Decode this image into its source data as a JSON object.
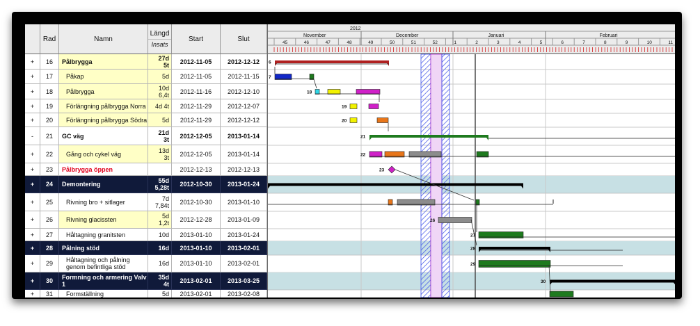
{
  "header": {
    "col_expand": "",
    "col_rad": "Rad",
    "col_name": "Namn",
    "col_duration": "Längd",
    "col_duration_sub": "Insats",
    "col_start": "Start",
    "col_end": "Slut"
  },
  "timescale": {
    "year": "2012",
    "months": [
      "November",
      "December",
      "Januari",
      "Februari"
    ],
    "weeks": [
      "45",
      "46",
      "47",
      "48",
      "49",
      "50",
      "51",
      "52",
      "1",
      "2",
      "3",
      "4",
      "5",
      "6",
      "7",
      "8",
      "9",
      "10",
      "11"
    ]
  },
  "rows": [
    {
      "exp": "+",
      "rad": "16",
      "name": "Pålbrygga",
      "dur": "27d",
      "dur2": "5t",
      "start": "2012-11-05",
      "end": "2012-12-12",
      "style": "yellow sum"
    },
    {
      "exp": "+",
      "rad": "17",
      "name": "Påkap",
      "dur": "5d",
      "dur2": "",
      "start": "2012-11-05",
      "end": "2012-11-15",
      "style": "yellow sub"
    },
    {
      "exp": "+",
      "rad": "18",
      "name": "Pålbrygga",
      "dur": "10d",
      "dur2": "6,4t",
      "start": "2012-11-16",
      "end": "2012-12-10",
      "style": "yellow sub"
    },
    {
      "exp": "+",
      "rad": "19",
      "name": "Förlängning pålbrygga Norra",
      "dur": "4d 4t",
      "dur2": "",
      "start": "2012-11-29",
      "end": "2012-12-07",
      "style": "yellow sub"
    },
    {
      "exp": "+",
      "rad": "20",
      "name": "Förlängning pålbrygga Södra",
      "dur": "5d",
      "dur2": "",
      "start": "2012-11-29",
      "end": "2012-12-12",
      "style": "yellow sub"
    },
    {
      "exp": "-",
      "rad": "21",
      "name": "GC väg",
      "dur": "21d",
      "dur2": "3t",
      "start": "2012-12-05",
      "end": "2013-01-14",
      "style": "white sum"
    },
    {
      "exp": "+",
      "rad": "22",
      "name": "Gång och cykel väg",
      "dur": "13d",
      "dur2": "3t",
      "start": "2012-12-05",
      "end": "2013-01-14",
      "style": "yellow sub"
    },
    {
      "exp": "+",
      "rad": "23",
      "name": "Pålbrygga öppen",
      "dur": "",
      "dur2": "",
      "start": "2012-12-13",
      "end": "2012-12-13",
      "style": "white milestone"
    },
    {
      "exp": "+",
      "rad": "24",
      "name": "Demontering",
      "dur": "55d",
      "dur2": "5,28t",
      "start": "2012-10-30",
      "end": "2013-01-24",
      "style": "dark"
    },
    {
      "exp": "+",
      "rad": "25",
      "name": "Rivning bro + sitlager",
      "dur": "7d",
      "dur2": "7,84t",
      "start": "2012-10-30",
      "end": "2013-01-10",
      "style": "white sub"
    },
    {
      "exp": "+",
      "rad": "26",
      "name": "Rivning glacissten",
      "dur": "5d",
      "dur2": "1,2t",
      "start": "2012-12-28",
      "end": "2013-01-09",
      "style": "yellow sub"
    },
    {
      "exp": "+",
      "rad": "27",
      "name": "Håltagning granitsten",
      "dur": "10d",
      "dur2": "",
      "start": "2013-01-10",
      "end": "2013-01-24",
      "style": "white sub"
    },
    {
      "exp": "+",
      "rad": "28",
      "name": "Pålning stöd",
      "dur": "16d",
      "dur2": "",
      "start": "2013-01-10",
      "end": "2013-02-01",
      "style": "dark"
    },
    {
      "exp": "+",
      "rad": "29",
      "name": "Håltagning och pålning genom befintliga stöd",
      "dur": "16d",
      "dur2": "",
      "start": "2013-01-10",
      "end": "2013-02-01",
      "style": "white sub wrapname"
    },
    {
      "exp": "+",
      "rad": "30",
      "name": "Formning och armering Valv 1",
      "dur": "35d",
      "dur2": "4t",
      "start": "2013-02-01",
      "end": "2013-03-25",
      "style": "dark wrapname"
    },
    {
      "exp": "+",
      "rad": "31",
      "name": "Formställning",
      "dur": "5d",
      "dur2": "",
      "start": "2013-02-01",
      "end": "2013-02-08",
      "style": "white sub"
    }
  ],
  "gantt_labels": [
    "6",
    "7",
    "18",
    "19",
    "20",
    "21",
    "22",
    "23",
    "26",
    "27",
    "28",
    "29",
    "30"
  ],
  "colors": {
    "dark_row": "#101a3a",
    "light_row_band": "#c7e0e4",
    "yellow_cell": "#ffffc6",
    "bar_green": "#1e7a1e",
    "bar_magenta": "#d020c8",
    "bar_yellow": "#f2f200",
    "bar_orange": "#e8761a",
    "bar_blue": "#1228c8",
    "bar_cyan": "#30d8e8",
    "bar_gray": "#8c8c8c",
    "summary_red": "#b02020",
    "milestone_red": "#e0001b"
  }
}
